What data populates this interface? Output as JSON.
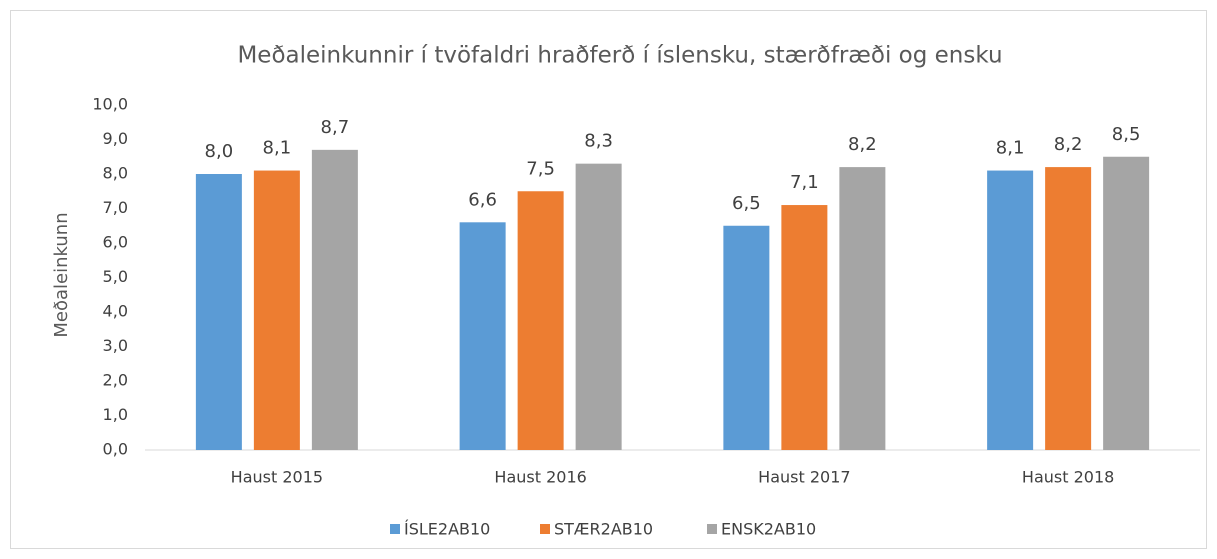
{
  "chart_data": {
    "type": "bar",
    "title": "Meðaleinkunnir í tvöfaldri hraðferð í íslensku, stærðfræði og ensku",
    "y_label": "Meðaleinkunn",
    "categories": [
      "Haust 2015",
      "Haust 2016",
      "Haust 2017",
      "Haust 2018"
    ],
    "series": [
      {
        "name": "ÍSLE2AB10",
        "color": "#5b9bd5",
        "values": [
          8.0,
          6.6,
          6.5,
          8.1
        ],
        "value_labels": [
          "8,0",
          "6,6",
          "6,5",
          "8,1"
        ]
      },
      {
        "name": "STÆR2AB10",
        "color": "#ed7d31",
        "values": [
          8.1,
          7.5,
          7.1,
          8.2
        ],
        "value_labels": [
          "8,1",
          "7,5",
          "7,1",
          "8,2"
        ]
      },
      {
        "name": "ENSK2AB10",
        "color": "#a5a5a5",
        "values": [
          8.7,
          8.3,
          8.2,
          8.5
        ],
        "value_labels": [
          "8,7",
          "8,3",
          "8,2",
          "8,5"
        ]
      }
    ],
    "ylim": [
      0,
      10
    ],
    "yticks": [
      {
        "value": 0,
        "label": "0,0"
      },
      {
        "value": 1,
        "label": "1,0"
      },
      {
        "value": 2,
        "label": "2,0"
      },
      {
        "value": 3,
        "label": "3,0"
      },
      {
        "value": 4,
        "label": "4,0"
      },
      {
        "value": 5,
        "label": "5,0"
      },
      {
        "value": 6,
        "label": "6,0"
      },
      {
        "value": 7,
        "label": "7,0"
      },
      {
        "value": 8,
        "label": "8,0"
      },
      {
        "value": 9,
        "label": "9,0"
      },
      {
        "value": 10,
        "label": "10,0"
      }
    ],
    "legend": "bottom"
  }
}
